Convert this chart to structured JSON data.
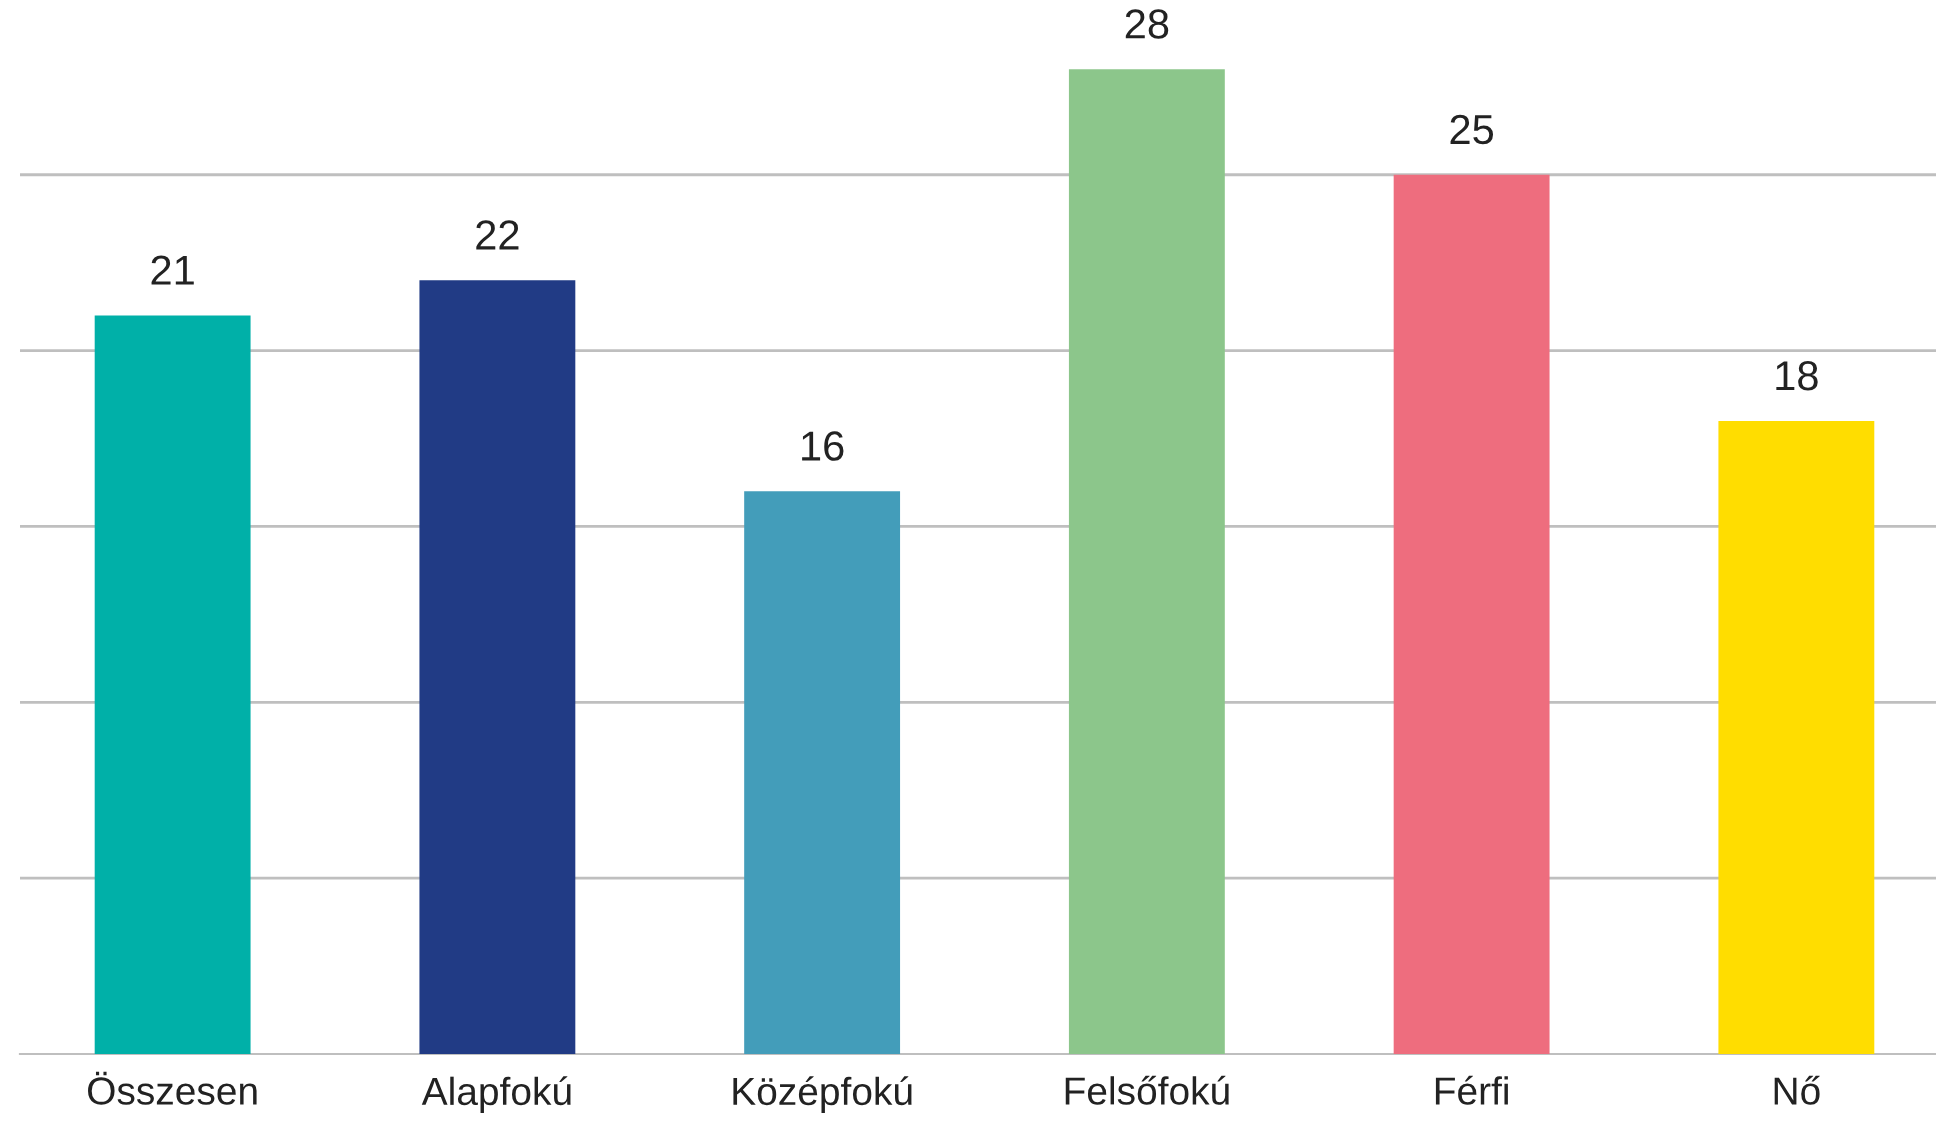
{
  "chart_data": {
    "type": "bar",
    "categories": [
      "Összesen",
      "Alapfokú",
      "Középfokú",
      "Felsőfokú",
      "Férfi",
      "Nő"
    ],
    "values": [
      21,
      22,
      16,
      28,
      25,
      18
    ],
    "colors": [
      "#00b0a8",
      "#213b85",
      "#439dba",
      "#8cc68b",
      "#ee6d7e",
      "#ffdd00"
    ],
    "yticks": [
      {
        "value": 5,
        "label": null
      },
      {
        "value": 10,
        "label": null
      },
      {
        "value": 15,
        "label": null
      },
      {
        "value": 20,
        "label": null
      },
      {
        "value": 25,
        "label": null
      }
    ],
    "tick_labels": "x",
    "grid": "y",
    "data_labels": true,
    "legend": false
  }
}
